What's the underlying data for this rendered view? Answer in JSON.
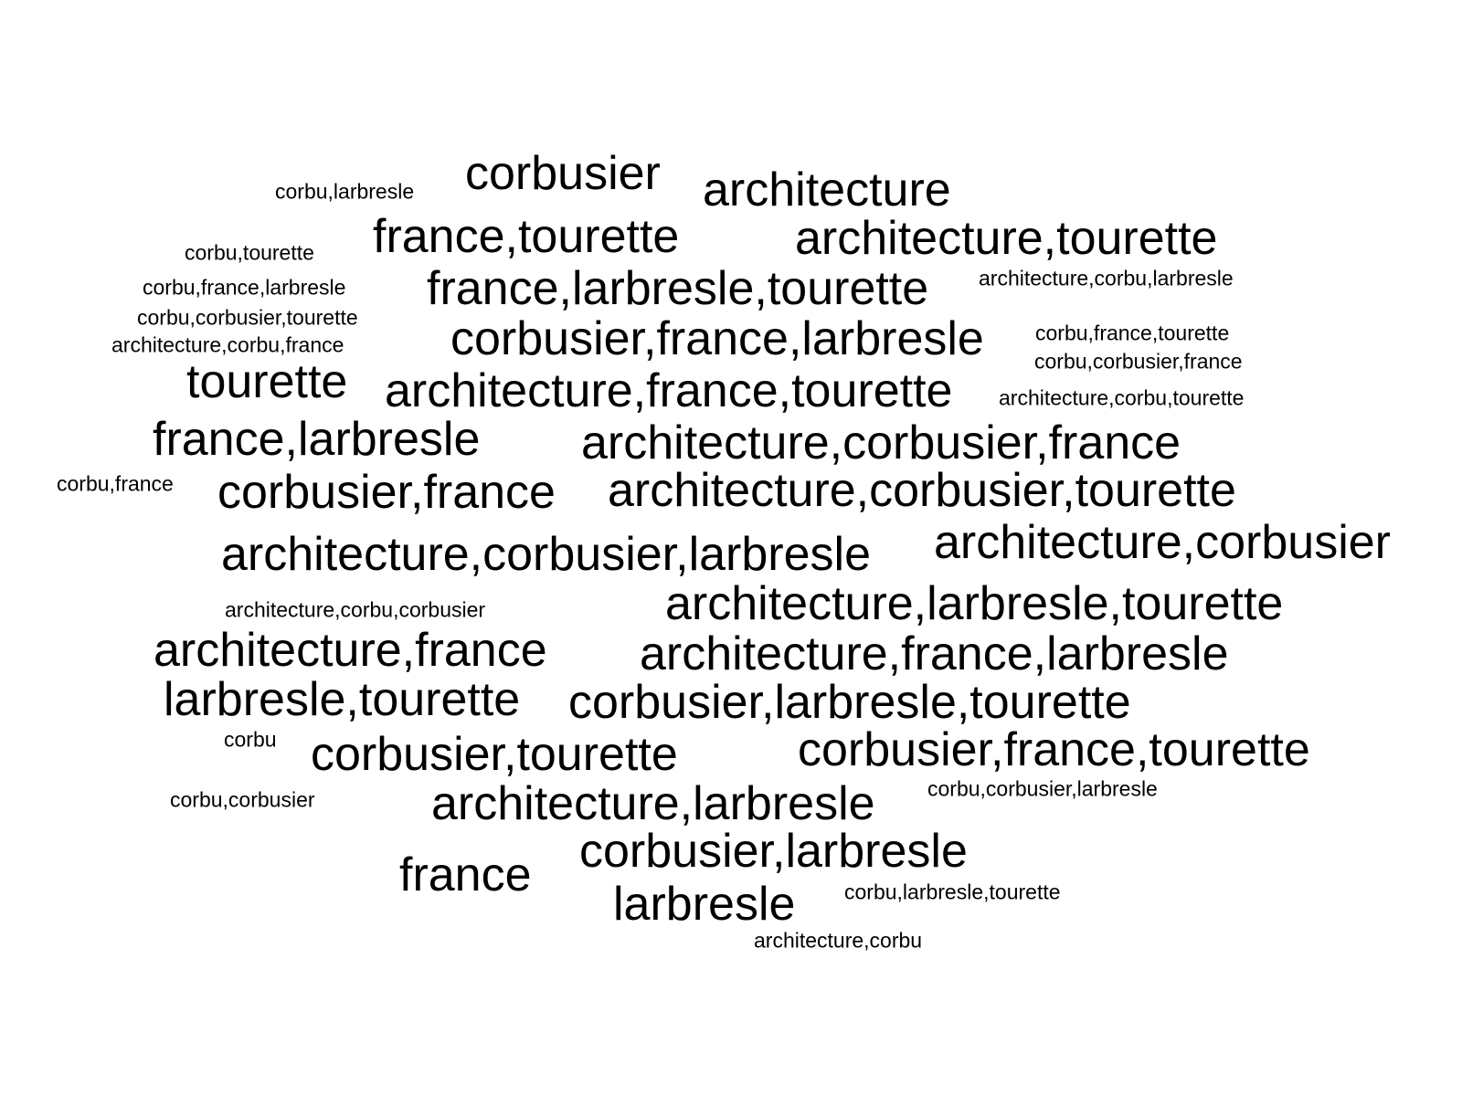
{
  "words": [
    {
      "text": "corbu,larbresle",
      "weight": 1
    },
    {
      "text": "corbusier",
      "weight": 2
    },
    {
      "text": "architecture",
      "weight": 2
    },
    {
      "text": "corbu,tourette",
      "weight": 1
    },
    {
      "text": "france,tourette",
      "weight": 2
    },
    {
      "text": "architecture,tourette",
      "weight": 2
    },
    {
      "text": "corbu,france,larbresle",
      "weight": 1
    },
    {
      "text": "france,larbresle,tourette",
      "weight": 2
    },
    {
      "text": "architecture,corbu,larbresle",
      "weight": 1
    },
    {
      "text": "corbu,corbusier,tourette",
      "weight": 1
    },
    {
      "text": "corbu,france,tourette",
      "weight": 1
    },
    {
      "text": "architecture,corbu,france",
      "weight": 1
    },
    {
      "text": "corbusier,france,larbresle",
      "weight": 2
    },
    {
      "text": "corbu,corbusier,france",
      "weight": 1
    },
    {
      "text": "tourette",
      "weight": 2
    },
    {
      "text": "architecture,france,tourette",
      "weight": 2
    },
    {
      "text": "architecture,corbu,tourette",
      "weight": 1
    },
    {
      "text": "france,larbresle",
      "weight": 2
    },
    {
      "text": "architecture,corbusier,france",
      "weight": 2
    },
    {
      "text": "corbu,france",
      "weight": 1
    },
    {
      "text": "corbusier,france",
      "weight": 2
    },
    {
      "text": "architecture,corbusier,tourette",
      "weight": 2
    },
    {
      "text": "architecture,corbusier,larbresle",
      "weight": 2
    },
    {
      "text": "architecture,corbusier",
      "weight": 2
    },
    {
      "text": "architecture,corbu,corbusier",
      "weight": 1
    },
    {
      "text": "architecture,larbresle,tourette",
      "weight": 2
    },
    {
      "text": "architecture,france",
      "weight": 2
    },
    {
      "text": "architecture,france,larbresle",
      "weight": 2
    },
    {
      "text": "larbresle,tourette",
      "weight": 2
    },
    {
      "text": "corbusier,larbresle,tourette",
      "weight": 2
    },
    {
      "text": "corbu",
      "weight": 1
    },
    {
      "text": "corbusier,tourette",
      "weight": 2
    },
    {
      "text": "corbusier,france,tourette",
      "weight": 2
    },
    {
      "text": "corbu,corbusier",
      "weight": 1
    },
    {
      "text": "architecture,larbresle",
      "weight": 2
    },
    {
      "text": "corbu,corbusier,larbresle",
      "weight": 1
    },
    {
      "text": "corbusier,larbresle",
      "weight": 2
    },
    {
      "text": "france",
      "weight": 2
    },
    {
      "text": "corbu,larbresle,tourette",
      "weight": 1
    },
    {
      "text": "larbresle",
      "weight": 2
    },
    {
      "text": "architecture,corbu",
      "weight": 1
    }
  ]
}
